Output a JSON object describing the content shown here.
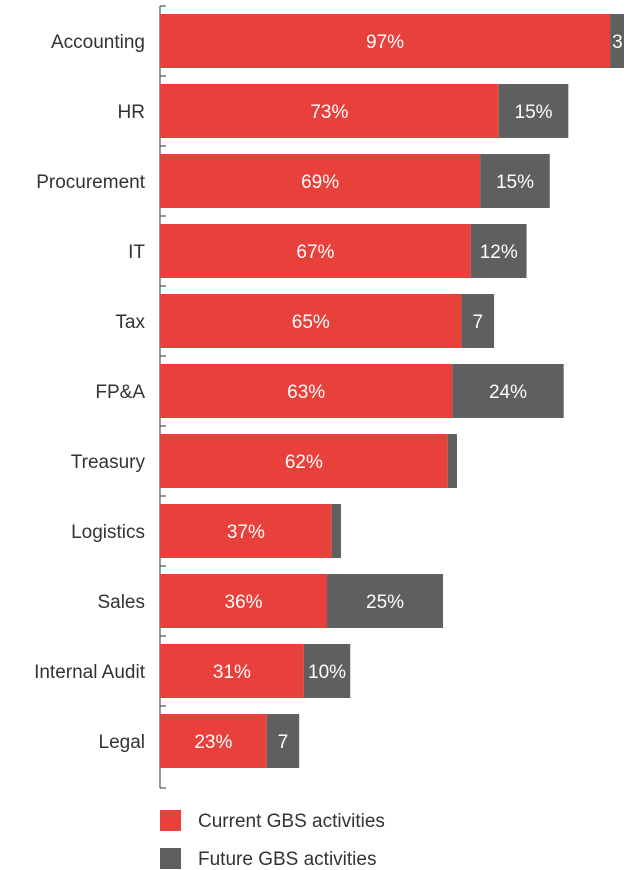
{
  "chart_data": {
    "type": "bar",
    "orientation": "horizontal",
    "stacked": true,
    "categories": [
      "Accounting",
      "HR",
      "Procurement",
      "IT",
      "Tax",
      "FP&A",
      "Treasury",
      "Logistics",
      "Sales",
      "Internal Audit",
      "Legal"
    ],
    "series": [
      {
        "name": "Current GBS activities",
        "color": "#e8403a",
        "values": [
          97,
          73,
          69,
          67,
          65,
          63,
          62,
          37,
          36,
          31,
          23
        ],
        "labels": [
          "97%",
          "73%",
          "69%",
          "67%",
          "65%",
          "63%",
          "62%",
          "37%",
          "36%",
          "31%",
          "23%"
        ]
      },
      {
        "name": "Future GBS activities",
        "color": "#5f5f5f",
        "values": [
          3,
          15,
          15,
          12,
          7,
          24,
          2,
          2,
          25,
          10,
          7
        ],
        "labels": [
          "3",
          "15%",
          "15%",
          "12%",
          "7",
          "24%",
          "",
          "",
          "25%",
          "10%",
          "7"
        ]
      }
    ],
    "xlim": [
      0,
      100
    ],
    "grid": false,
    "legend_position": "bottom-left"
  }
}
